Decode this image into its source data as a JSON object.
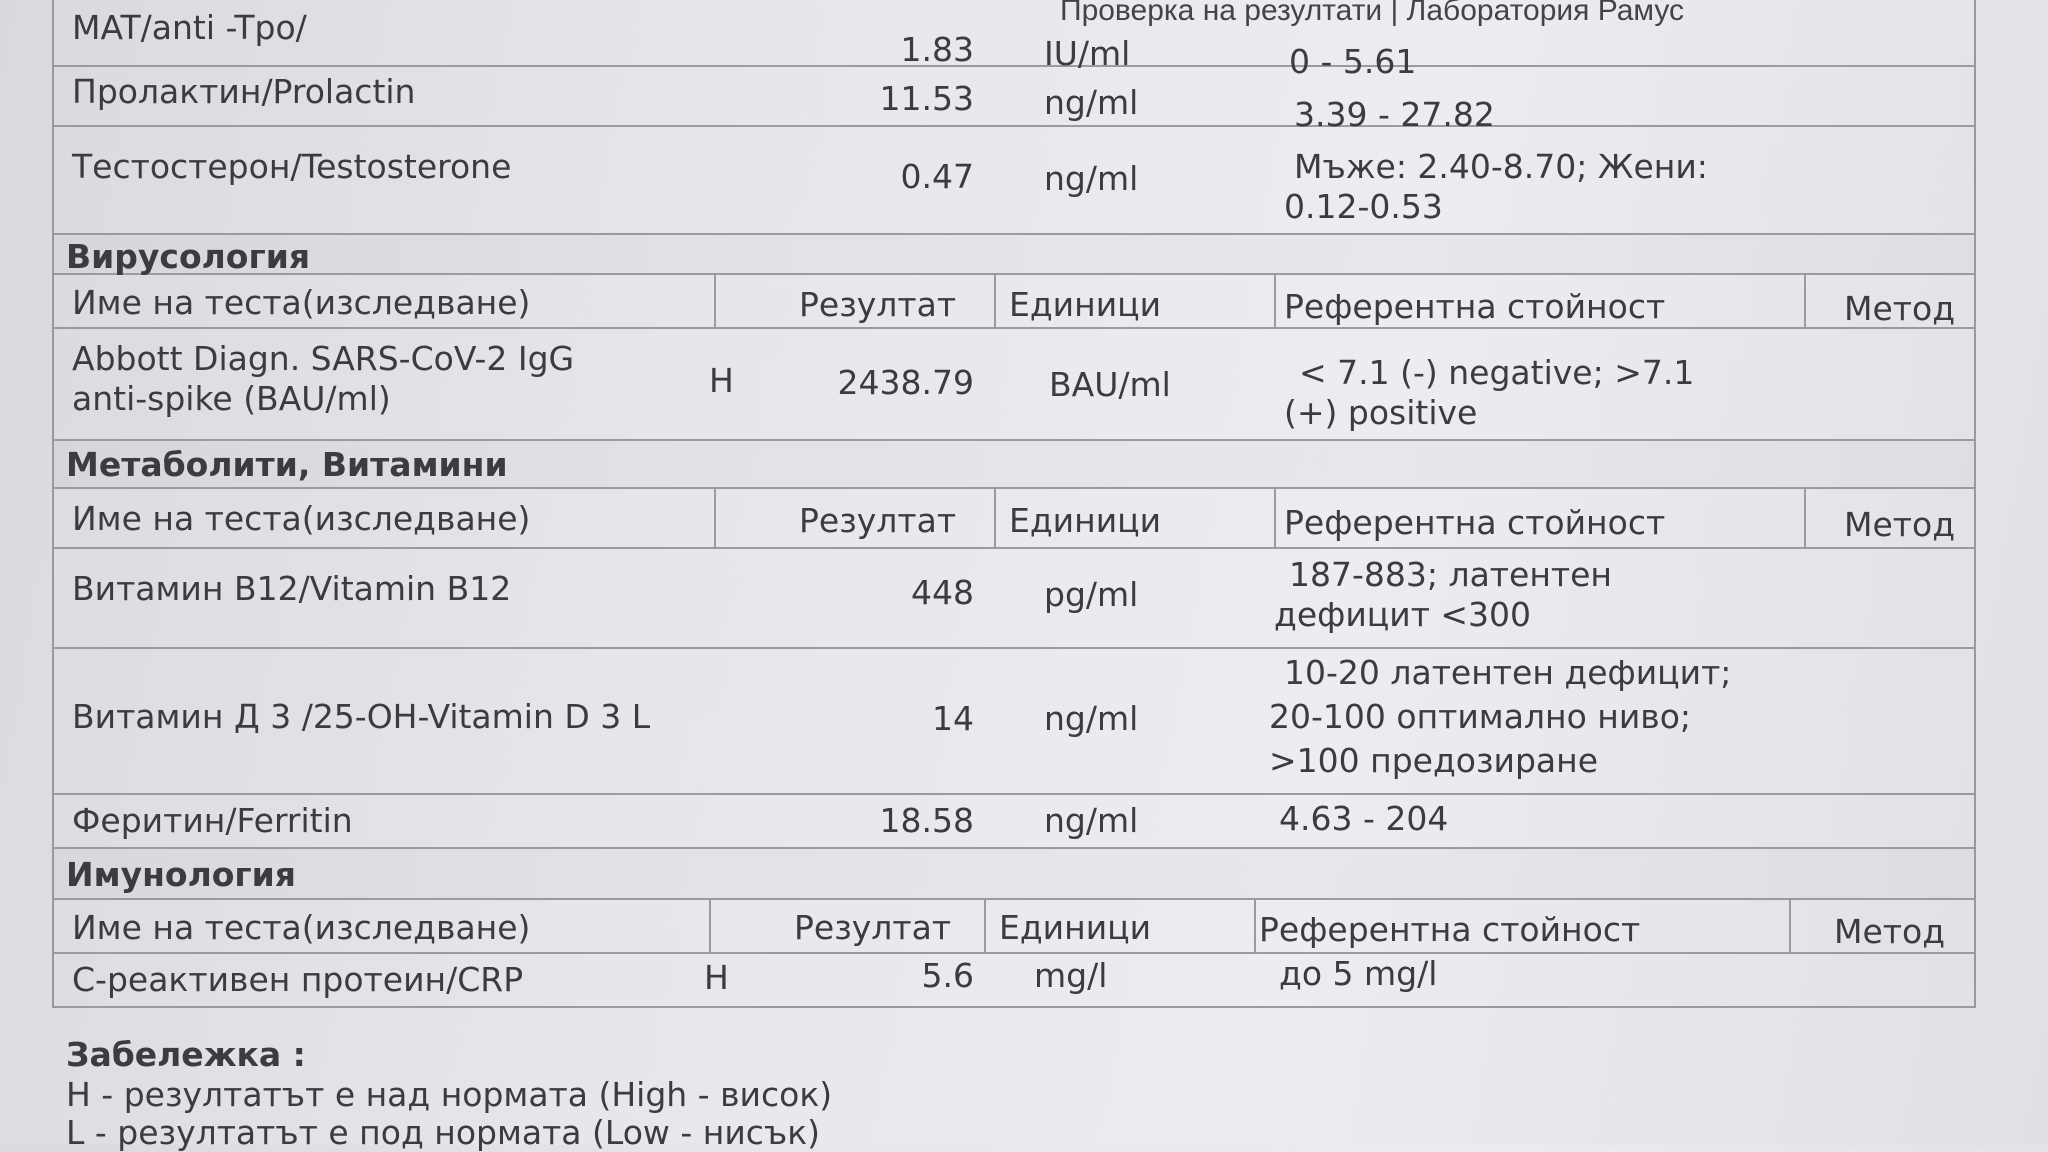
{
  "header": "Проверка на резултати | Лаборатория Рамус",
  "columns": {
    "name": "Име на теста(изследване)",
    "result": "Резултат",
    "units": "Единици",
    "reference": "Референтна стойност",
    "method": "Метод"
  },
  "hormones": [
    {
      "name": "MAT/anti -Tpo/",
      "flag": "",
      "result": "1.83",
      "units": "IU/ml",
      "ref": [
        "0 - 5.61"
      ]
    },
    {
      "name": "Пролактин/Prolactin",
      "flag": "",
      "result": "11.53",
      "units": "ng/ml",
      "ref": [
        "3.39 - 27.82"
      ]
    },
    {
      "name": "Тестостерон/Testosterone",
      "flag": "",
      "result": "0.47",
      "units": "ng/ml",
      "ref": [
        "Мъже: 2.40-8.70; Жени:",
        "0.12-0.53"
      ]
    }
  ],
  "virology": {
    "title": "Вирусология",
    "rows": [
      {
        "name": [
          "Abbott Diagn. SARS-CoV-2 IgG",
          "anti-spike (BAU/ml)"
        ],
        "flag": "H",
        "result": "2438.79",
        "units": "BAU/ml",
        "ref": [
          "< 7.1 (-) negative; >7.1",
          "(+) positive"
        ]
      }
    ]
  },
  "metabolites": {
    "title": "Метаболити, Витамини",
    "rows": [
      {
        "name": "Витамин B12/Vitamin B12",
        "flag": "",
        "result": "448",
        "units": "pg/ml",
        "ref": [
          "187-883; латентен",
          "дефицит <300"
        ]
      },
      {
        "name": "Витамин Д 3 /25-OH-Vitamin D 3 L",
        "flag": "",
        "result": "14",
        "units": "ng/ml",
        "ref": [
          "10-20 латентен дефицит;",
          "20-100 оптимално ниво;",
          ">100 предозиране"
        ]
      },
      {
        "name": "Феритин/Ferritin",
        "flag": "",
        "result": "18.58",
        "units": "ng/ml",
        "ref": [
          "4.63 - 204"
        ]
      }
    ]
  },
  "immunology": {
    "title": "Имунология",
    "rows": [
      {
        "name": "С-реактивен протеин/CRP",
        "flag": "H",
        "result": "5.6",
        "units": "mg/l",
        "ref": [
          "до 5 mg/l"
        ]
      }
    ]
  },
  "notes": {
    "title": "Забележка :",
    "lines": [
      "H - резултатът е над нормата (High - висок)",
      "L - резултатът е под нормата (Low - нисък)"
    ]
  }
}
